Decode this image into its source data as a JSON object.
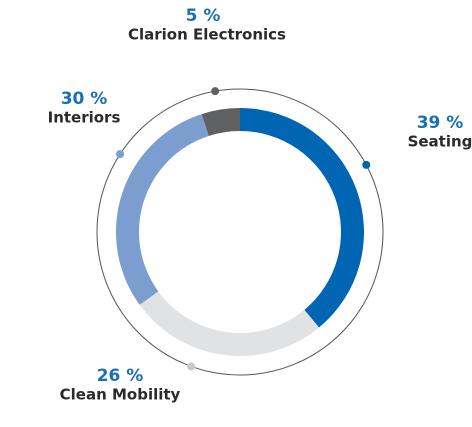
{
  "chart_data": {
    "type": "donut",
    "categories": [
      "Seating",
      "Clean Mobility",
      "Interiors",
      "Clarion Electronics"
    ],
    "values": [
      39,
      26,
      30,
      5
    ],
    "value_labels": [
      "39 %",
      "26 %",
      "30 %",
      "5 %"
    ],
    "colors": [
      "#0066b3",
      "#e1e2e4",
      "#7b9dcf",
      "#5f6062"
    ]
  }
}
